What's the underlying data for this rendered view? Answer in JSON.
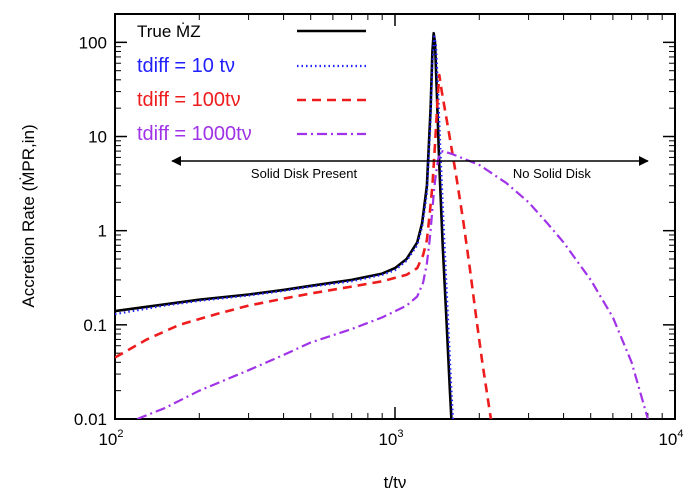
{
  "chart_data": {
    "type": "line",
    "title": "",
    "xlabel": "t/tν",
    "ylabel": "Accretion Rate (ṀPR,in)",
    "xscale": "log",
    "yscale": "log",
    "xlim": [
      100,
      10000
    ],
    "ylim": [
      0.01,
      200
    ],
    "x_ticks": [
      {
        "value": 100,
        "base": "10",
        "exp": "2"
      },
      {
        "value": 1000,
        "base": "10",
        "exp": "3"
      },
      {
        "value": 10000,
        "base": "10",
        "exp": "4"
      }
    ],
    "y_ticks": [
      {
        "value": 0.01,
        "label": "0.01"
      },
      {
        "value": 0.1,
        "label": "0.1"
      },
      {
        "value": 1,
        "label": "1"
      },
      {
        "value": 10,
        "label": "10"
      },
      {
        "value": 100,
        "label": "100"
      }
    ],
    "grid": false,
    "legend": {
      "placement": "top-left",
      "entries": [
        {
          "key": "true",
          "text": "True ṀZ",
          "color": "#000000",
          "dash": "solid"
        },
        {
          "key": "t10",
          "text": "tdiff = 10 tν",
          "color": "#1f1fff",
          "dash": "dotted"
        },
        {
          "key": "t100",
          "text": "tdiff = 100tν",
          "color": "#ee1c1c",
          "dash": "dashed"
        },
        {
          "key": "t1000",
          "text": "tdiff = 1000tν",
          "color": "#a033e8",
          "dash": "dashdot"
        }
      ]
    },
    "annotations": {
      "arrow_y": 5.5,
      "arrow_x_from": 160,
      "arrow_x_to": 8000,
      "arrow_x_split": 1400,
      "left_text": "Solid Disk Present",
      "right_text": "No Solid Disk"
    },
    "series": [
      {
        "key": "true",
        "color": "#000000",
        "dash": "solid",
        "points": [
          [
            100,
            0.14
          ],
          [
            150,
            0.165
          ],
          [
            200,
            0.185
          ],
          [
            300,
            0.21
          ],
          [
            400,
            0.235
          ],
          [
            500,
            0.26
          ],
          [
            700,
            0.3
          ],
          [
            900,
            0.35
          ],
          [
            1000,
            0.4
          ],
          [
            1100,
            0.5
          ],
          [
            1200,
            0.75
          ],
          [
            1250,
            1.2
          ],
          [
            1300,
            3
          ],
          [
            1340,
            20
          ],
          [
            1360,
            80
          ],
          [
            1375,
            125
          ],
          [
            1390,
            100
          ],
          [
            1410,
            30
          ],
          [
            1440,
            5
          ],
          [
            1480,
            0.7
          ],
          [
            1530,
            0.1
          ],
          [
            1570,
            0.02
          ],
          [
            1590,
            0.01
          ]
        ]
      },
      {
        "key": "t10",
        "color": "#1f1fff",
        "dash": "dotted",
        "points": [
          [
            100,
            0.13
          ],
          [
            150,
            0.16
          ],
          [
            200,
            0.18
          ],
          [
            300,
            0.205
          ],
          [
            400,
            0.23
          ],
          [
            500,
            0.255
          ],
          [
            700,
            0.29
          ],
          [
            900,
            0.34
          ],
          [
            1000,
            0.38
          ],
          [
            1100,
            0.48
          ],
          [
            1200,
            0.7
          ],
          [
            1250,
            1.1
          ],
          [
            1300,
            2.5
          ],
          [
            1340,
            15
          ],
          [
            1360,
            60
          ],
          [
            1380,
            115
          ],
          [
            1400,
            95
          ],
          [
            1420,
            40
          ],
          [
            1450,
            8
          ],
          [
            1490,
            1.2
          ],
          [
            1540,
            0.15
          ],
          [
            1580,
            0.03
          ],
          [
            1610,
            0.01
          ]
        ]
      },
      {
        "key": "t100",
        "color": "#ee1c1c",
        "dash": "dashed",
        "points": [
          [
            100,
            0.045
          ],
          [
            130,
            0.07
          ],
          [
            170,
            0.1
          ],
          [
            230,
            0.13
          ],
          [
            300,
            0.16
          ],
          [
            400,
            0.19
          ],
          [
            500,
            0.215
          ],
          [
            700,
            0.255
          ],
          [
            900,
            0.29
          ],
          [
            1100,
            0.34
          ],
          [
            1200,
            0.4
          ],
          [
            1260,
            0.55
          ],
          [
            1300,
            0.8
          ],
          [
            1330,
            1.5
          ],
          [
            1360,
            3
          ],
          [
            1380,
            6
          ],
          [
            1400,
            12
          ],
          [
            1420,
            25
          ],
          [
            1440,
            45
          ],
          [
            1470,
            30
          ],
          [
            1550,
            12
          ],
          [
            1650,
            4
          ],
          [
            1750,
            1.3
          ],
          [
            1850,
            0.4
          ],
          [
            1950,
            0.12
          ],
          [
            2050,
            0.04
          ],
          [
            2200,
            0.01
          ]
        ]
      },
      {
        "key": "t1000",
        "color": "#a033e8",
        "dash": "dashdot",
        "points": [
          [
            120,
            0.01
          ],
          [
            150,
            0.013
          ],
          [
            200,
            0.02
          ],
          [
            300,
            0.033
          ],
          [
            400,
            0.048
          ],
          [
            500,
            0.065
          ],
          [
            700,
            0.09
          ],
          [
            900,
            0.12
          ],
          [
            1100,
            0.16
          ],
          [
            1200,
            0.2
          ],
          [
            1260,
            0.28
          ],
          [
            1300,
            0.45
          ],
          [
            1330,
            0.8
          ],
          [
            1350,
            1.3
          ],
          [
            1380,
            2.8
          ],
          [
            1400,
            4
          ],
          [
            1430,
            6
          ],
          [
            1480,
            7
          ],
          [
            1600,
            6.5
          ],
          [
            2000,
            5
          ],
          [
            2500,
            3.2
          ],
          [
            3000,
            2
          ],
          [
            3500,
            1.2
          ],
          [
            4000,
            0.75
          ],
          [
            5000,
            0.3
          ],
          [
            6000,
            0.12
          ],
          [
            7000,
            0.04
          ],
          [
            8000,
            0.01
          ]
        ]
      }
    ]
  }
}
